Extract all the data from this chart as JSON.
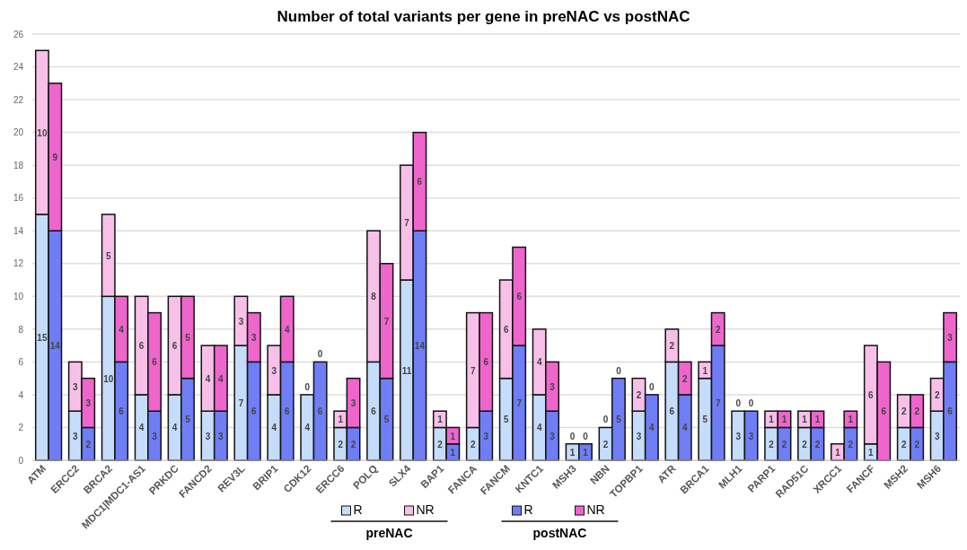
{
  "chart_data": {
    "type": "bar",
    "title": "Number of total variants per gene in preNAC vs postNAC",
    "stacked": true,
    "categories": [
      "ATM",
      null,
      "ERCC2",
      null,
      "BRCA2",
      null,
      "MDC1|MDC1-AS1",
      null,
      "PRKDC",
      null,
      "FANCD2",
      null,
      "REV3L",
      null,
      "BRIP1",
      null,
      "CDK12",
      null,
      "ERCC6",
      null,
      "POLQ",
      null,
      "SLX4",
      null,
      "BAP1",
      null,
      "FANCA",
      null,
      "FANCM",
      null,
      "KNTC1",
      null,
      "MSH3",
      null,
      "NBN",
      null,
      "TOPBP1",
      null,
      "ATR",
      null,
      "BRCA1",
      null,
      "MLH1",
      null,
      "PARP1",
      null,
      "RAD51C",
      null,
      "XRCC1",
      null,
      "FANCF",
      null,
      "MSH2",
      null,
      "MSH6",
      null
    ],
    "series": [
      {
        "name": "R",
        "color": "#c5dcfa",
        "values": [
          15,
          null,
          3,
          null,
          10,
          null,
          4,
          null,
          4,
          null,
          3,
          null,
          7,
          null,
          4,
          null,
          4,
          null,
          2,
          null,
          6,
          null,
          11,
          null,
          2,
          null,
          2,
          null,
          5,
          null,
          4,
          null,
          1,
          null,
          2,
          null,
          3,
          null,
          6,
          null,
          5,
          null,
          3,
          null,
          2,
          null,
          2,
          null,
          0,
          null,
          1,
          null,
          2,
          null,
          3,
          null
        ],
        "value_labels": [
          "15",
          null,
          "3",
          null,
          "10",
          null,
          "4",
          null,
          "4",
          null,
          "3",
          null,
          "7",
          null,
          "4",
          null,
          "4",
          null,
          "2",
          null,
          "6",
          null,
          "11",
          null,
          "2",
          null,
          "2",
          null,
          "5",
          null,
          "4",
          null,
          "1",
          null,
          "2",
          null,
          "3",
          null,
          "6",
          null,
          "5",
          null,
          "3",
          null,
          "2",
          null,
          "2",
          null,
          null,
          null,
          "1",
          null,
          "2",
          null,
          "3",
          null
        ]
      },
      {
        "name": "NR",
        "color": "#f8c0e8",
        "values": [
          10,
          null,
          3,
          null,
          5,
          null,
          6,
          null,
          6,
          null,
          4,
          null,
          3,
          null,
          3,
          null,
          0,
          null,
          1,
          null,
          8,
          null,
          7,
          null,
          1,
          null,
          7,
          null,
          6,
          null,
          4,
          null,
          0,
          null,
          0,
          null,
          2,
          null,
          2,
          null,
          1,
          null,
          0,
          null,
          1,
          null,
          1,
          null,
          1,
          null,
          6,
          null,
          2,
          null,
          2,
          null
        ],
        "value_labels": [
          "10",
          null,
          "3",
          null,
          "5",
          null,
          "6",
          null,
          "6",
          null,
          "4",
          null,
          "3",
          null,
          "3",
          null,
          "0",
          null,
          "1",
          null,
          "8",
          null,
          "7",
          null,
          "1",
          null,
          "7",
          null,
          "6",
          null,
          "4",
          null,
          "0",
          null,
          "0",
          null,
          "2",
          null,
          "2",
          null,
          "1",
          null,
          "0",
          null,
          "1",
          null,
          "1",
          null,
          "1",
          null,
          "6",
          null,
          "2",
          null,
          "2",
          null
        ]
      },
      {
        "name": "R",
        "color": "#6f7ef5",
        "values": [
          null,
          14,
          null,
          2,
          null,
          6,
          null,
          3,
          null,
          5,
          null,
          3,
          null,
          6,
          null,
          6,
          null,
          6,
          null,
          2,
          null,
          5,
          null,
          14,
          null,
          1,
          null,
          3,
          null,
          7,
          null,
          3,
          null,
          1,
          null,
          5,
          null,
          4,
          null,
          4,
          null,
          7,
          null,
          3,
          null,
          2,
          null,
          2,
          null,
          2,
          null,
          0,
          null,
          2,
          null,
          6
        ],
        "value_labels": [
          null,
          "14",
          null,
          "2",
          null,
          "6",
          null,
          "3",
          null,
          "5",
          null,
          "3",
          null,
          "6",
          null,
          "6",
          null,
          "6",
          null,
          "2",
          null,
          "5",
          null,
          "14",
          null,
          "1",
          null,
          "3",
          null,
          "7",
          null,
          "3",
          null,
          "1",
          null,
          "5",
          null,
          "4",
          null,
          "4",
          null,
          "7",
          null,
          "3",
          null,
          "2",
          null,
          "2",
          null,
          "2",
          null,
          null,
          null,
          "2",
          null,
          "6"
        ]
      },
      {
        "name": "NR",
        "color": "#ee66cc",
        "values": [
          null,
          9,
          null,
          3,
          null,
          4,
          null,
          6,
          null,
          5,
          null,
          4,
          null,
          3,
          null,
          4,
          null,
          0,
          null,
          3,
          null,
          7,
          null,
          6,
          null,
          1,
          null,
          6,
          null,
          6,
          null,
          3,
          null,
          0,
          null,
          0,
          null,
          0,
          null,
          2,
          null,
          2,
          null,
          0,
          null,
          1,
          null,
          1,
          null,
          1,
          null,
          6,
          null,
          2,
          null,
          3
        ],
        "value_labels": [
          null,
          "9",
          null,
          "3",
          null,
          "4",
          null,
          "6",
          null,
          "5",
          null,
          "4",
          null,
          "3",
          null,
          "4",
          null,
          "0",
          null,
          "3",
          null,
          "7",
          null,
          "6",
          null,
          "1",
          null,
          "6",
          null,
          "6",
          null,
          "3",
          null,
          "0",
          null,
          "0",
          null,
          "0",
          null,
          "2",
          null,
          "2",
          null,
          "0",
          null,
          "1",
          null,
          "1",
          null,
          "1",
          null,
          "6",
          null,
          "2",
          null,
          "3"
        ]
      }
    ],
    "annotations": [
      "preNAC",
      "postNAC"
    ],
    "ylim": [
      0,
      26
    ],
    "yticks": [
      0,
      2,
      4,
      6,
      8,
      10,
      12,
      14,
      16,
      18,
      20,
      22,
      24,
      26
    ],
    "grid": "y",
    "legend": "bottom"
  }
}
